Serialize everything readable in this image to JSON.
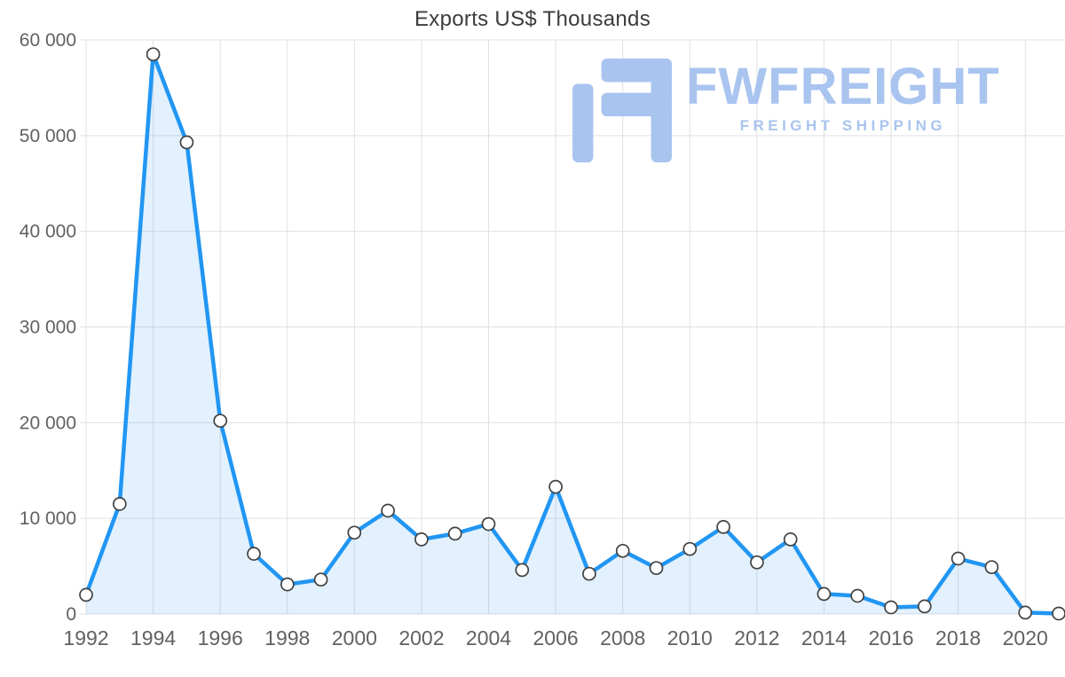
{
  "chart_data": {
    "type": "area",
    "title": "Exports US$ Thousands",
    "x": [
      1992,
      1993,
      1994,
      1995,
      1996,
      1997,
      1998,
      1999,
      2000,
      2001,
      2002,
      2003,
      2004,
      2005,
      2006,
      2007,
      2008,
      2009,
      2010,
      2011,
      2012,
      2013,
      2014,
      2015,
      2016,
      2017,
      2018,
      2019,
      2020,
      2021
    ],
    "series": [
      {
        "name": "Exports US$ Thousands",
        "values": [
          2000,
          11500,
          58500,
          49300,
          20200,
          6300,
          3100,
          3600,
          8500,
          10800,
          7800,
          8400,
          9400,
          4600,
          13300,
          4200,
          6600,
          4800,
          6800,
          9100,
          5400,
          7800,
          2100,
          1900,
          700,
          800,
          5800,
          4900,
          150,
          50
        ]
      }
    ],
    "ylim": [
      0,
      60000
    ],
    "ytick_values": [
      0,
      10000,
      20000,
      30000,
      40000,
      50000,
      60000
    ],
    "ytick_labels": [
      "0",
      "10 000",
      "20 000",
      "30 000",
      "40 000",
      "50 000",
      "60 000"
    ],
    "xtick_values": [
      1992,
      1994,
      1996,
      1998,
      2000,
      2002,
      2004,
      2006,
      2008,
      2010,
      2012,
      2014,
      2016,
      2018,
      2020
    ],
    "xtick_labels": [
      "1992",
      "1994",
      "1996",
      "1998",
      "2000",
      "2002",
      "2004",
      "2006",
      "2008",
      "2010",
      "2012",
      "2014",
      "2016",
      "2018",
      "2020"
    ],
    "grid": true,
    "legend": "none",
    "marker_shape": "circle",
    "colors": {
      "line": "#2196f3",
      "fill": "rgba(33,150,243,0.13)",
      "marker_fill": "#ffffff",
      "marker_stroke": "#424242",
      "grid": "#e0e0e0",
      "axis_text": "#616161",
      "title_text": "#3c3c3c"
    }
  },
  "watermark": {
    "brand": "FWFREIGHT",
    "tagline": "FREIGHT SHIPPING",
    "color": "#a9c4ef"
  }
}
